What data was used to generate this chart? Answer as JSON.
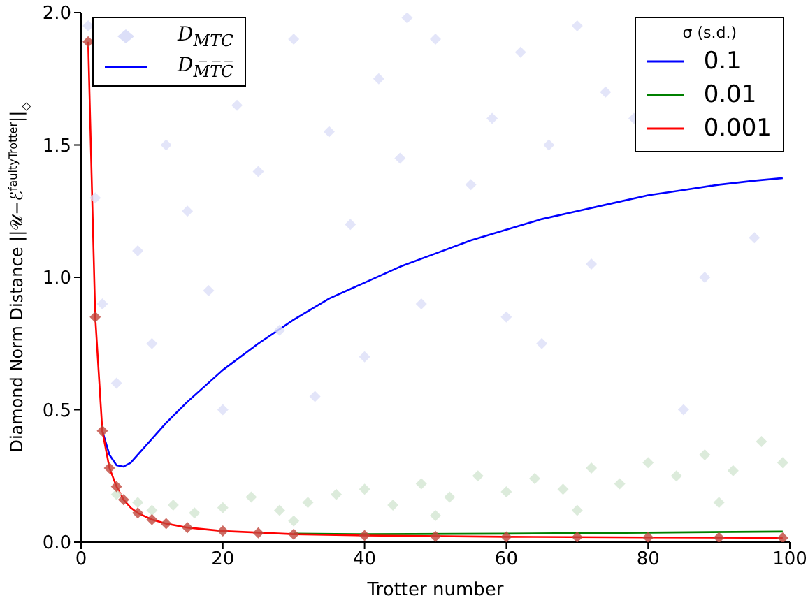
{
  "chart_data": {
    "type": "line",
    "xlabel": "Trotter number",
    "ylabel": "Diamond Norm Distance ||𝒰−ℰ$^{faultyTrotter}$||$_{◇}$",
    "legend_title": "σ (s.d.)",
    "annotations": [
      "D$_{M̅T̅C̅}$"
    ],
    "xlim": [
      0,
      100
    ],
    "xticks": [
      0,
      20,
      40,
      60,
      80,
      100
    ],
    "ylim": [
      0,
      2.0
    ],
    "yticks": [
      {
        "value": 0,
        "label": "0.0"
      },
      {
        "value": 0.5,
        "label": "0.5"
      },
      {
        "value": 1.0,
        "label": "1.0"
      },
      {
        "value": 1.5,
        "label": "1.5"
      },
      {
        "value": 2.0,
        "label": "2.0"
      }
    ],
    "grid": false,
    "legend": "top right",
    "series": [
      {
        "name": "D$_{MTC}$",
        "type": "scatter",
        "marker": "diamond",
        "color": "#dcdff8",
        "x": [
          1,
          2,
          3,
          5,
          8,
          10,
          12,
          15,
          18,
          22,
          25,
          28,
          30,
          35,
          38,
          42,
          45,
          50,
          55,
          58,
          62,
          66,
          70,
          74,
          78,
          46,
          20,
          33,
          48,
          60,
          72,
          88,
          95,
          40,
          65,
          85
        ],
        "values": [
          1.95,
          1.3,
          0.9,
          0.6,
          1.1,
          0.75,
          1.5,
          1.25,
          0.95,
          1.65,
          1.4,
          0.8,
          1.9,
          1.55,
          1.2,
          1.75,
          1.45,
          1.9,
          1.35,
          1.6,
          1.85,
          1.5,
          1.95,
          1.7,
          1.6,
          1.98,
          0.5,
          0.55,
          0.9,
          0.85,
          1.05,
          1.0,
          1.15,
          0.7,
          0.75,
          0.5
        ]
      },
      {
        "type": "scatter",
        "marker": "diamond",
        "color": "#d3e6d2",
        "x": [
          5,
          8,
          10,
          13,
          16,
          20,
          24,
          28,
          32,
          36,
          40,
          44,
          48,
          52,
          56,
          60,
          64,
          68,
          72,
          76,
          80,
          84,
          88,
          92,
          96,
          99,
          30,
          50,
          70,
          90
        ],
        "values": [
          0.18,
          0.15,
          0.12,
          0.14,
          0.11,
          0.13,
          0.17,
          0.12,
          0.15,
          0.18,
          0.2,
          0.14,
          0.22,
          0.17,
          0.25,
          0.19,
          0.24,
          0.2,
          0.28,
          0.22,
          0.3,
          0.25,
          0.33,
          0.27,
          0.38,
          0.3,
          0.08,
          0.1,
          0.12,
          0.15
        ]
      },
      {
        "type": "scatter",
        "marker": "diamond",
        "color": "#c0463c",
        "x": [
          1,
          2,
          3,
          4,
          5,
          6,
          8,
          10,
          12,
          15,
          20,
          25,
          30,
          40,
          50,
          60,
          70,
          80,
          90,
          99
        ],
        "values": [
          1.89,
          0.85,
          0.42,
          0.28,
          0.21,
          0.16,
          0.11,
          0.085,
          0.07,
          0.055,
          0.042,
          0.035,
          0.03,
          0.025,
          0.022,
          0.02,
          0.019,
          0.018,
          0.017,
          0.016
        ]
      },
      {
        "name": "0.1",
        "color": "#0000ff",
        "x": [
          3,
          4,
          5,
          6,
          7,
          8,
          10,
          12,
          15,
          20,
          25,
          30,
          35,
          40,
          45,
          50,
          55,
          60,
          65,
          70,
          75,
          80,
          85,
          90,
          95,
          99
        ],
        "values": [
          0.42,
          0.33,
          0.29,
          0.285,
          0.3,
          0.33,
          0.39,
          0.45,
          0.53,
          0.65,
          0.75,
          0.84,
          0.92,
          0.98,
          1.04,
          1.09,
          1.14,
          1.18,
          1.22,
          1.25,
          1.28,
          1.31,
          1.33,
          1.35,
          1.365,
          1.375
        ]
      },
      {
        "name": "0.01",
        "color": "#008000",
        "x": [
          30,
          40,
          60,
          80,
          99
        ],
        "values": [
          0.032,
          0.03,
          0.032,
          0.036,
          0.04
        ]
      },
      {
        "name": "0.001",
        "color": "#ff0000",
        "x": [
          1,
          2,
          3,
          4,
          5,
          6,
          7,
          8,
          10,
          12,
          15,
          20,
          30,
          40,
          60,
          80,
          99
        ],
        "values": [
          1.89,
          0.85,
          0.42,
          0.28,
          0.21,
          0.16,
          0.13,
          0.11,
          0.085,
          0.07,
          0.055,
          0.042,
          0.03,
          0.025,
          0.02,
          0.018,
          0.016
        ]
      }
    ]
  }
}
